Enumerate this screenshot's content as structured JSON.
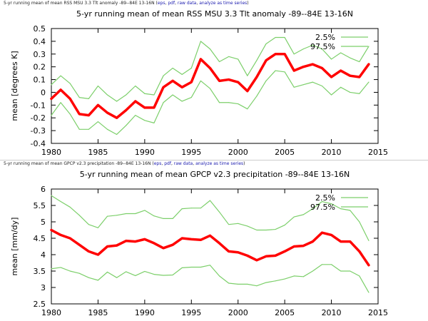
{
  "captions": [
    {
      "prefix": "5-yr running mean of mean RSS MSU 3.3 Tlt anomaly -89--84E 13-16N ",
      "links": [
        "eps",
        "pdf",
        "raw data",
        "analyze as time series"
      ]
    },
    {
      "prefix": "5-yr running mean of mean GPCP v2.3 precipitation -89--84E 13-16N ",
      "links": [
        "eps",
        "pdf",
        "raw data",
        "analyze as time series"
      ]
    }
  ],
  "colors": {
    "mean": "#ff0000",
    "bounds": "#7ccf6a",
    "axis": "#000000"
  },
  "chart_data": [
    {
      "type": "line",
      "title": "5-yr running mean of mean RSS MSU 3.3 Tlt anomaly -89--84E 13-16N",
      "xlabel": "",
      "ylabel": "mean [degrees K]",
      "xlim": [
        1980,
        2015
      ],
      "ylim": [
        -0.4,
        0.5
      ],
      "xticks": [
        1980,
        1985,
        1990,
        1995,
        2000,
        2005,
        2010,
        2015
      ],
      "yticks": [
        -0.4,
        -0.3,
        -0.2,
        -0.1,
        0,
        0.1,
        0.2,
        0.3,
        0.4,
        0.5
      ],
      "ytick_labels": [
        "-0.4",
        "-0.3",
        "-0.2",
        "-0.1",
        "0",
        "0.1",
        "0.2",
        "0.3",
        "0.4",
        "0.5"
      ],
      "legend_position": "top-right",
      "x": [
        1980,
        1981,
        1982,
        1983,
        1984,
        1985,
        1986,
        1987,
        1988,
        1989,
        1990,
        1991,
        1992,
        1993,
        1994,
        1995,
        1996,
        1997,
        1998,
        1999,
        2000,
        2001,
        2002,
        2003,
        2004,
        2005,
        2006,
        2007,
        2008,
        2009,
        2010,
        2011,
        2012,
        2013,
        2014
      ],
      "series": [
        {
          "name": "",
          "role": "mean",
          "values": [
            -0.05,
            0.02,
            -0.05,
            -0.17,
            -0.18,
            -0.1,
            -0.16,
            -0.2,
            -0.14,
            -0.07,
            -0.12,
            -0.12,
            0.04,
            0.09,
            0.04,
            0.08,
            0.26,
            0.19,
            0.09,
            0.1,
            0.08,
            0.01,
            0.12,
            0.25,
            0.3,
            0.3,
            0.17,
            0.2,
            0.22,
            0.19,
            0.12,
            0.17,
            0.13,
            0.12,
            0.22
          ]
        },
        {
          "name": "2.5%",
          "role": "lower",
          "values": [
            -0.18,
            -0.08,
            -0.17,
            -0.29,
            -0.29,
            -0.23,
            -0.29,
            -0.33,
            -0.26,
            -0.18,
            -0.22,
            -0.24,
            -0.08,
            -0.02,
            -0.07,
            -0.04,
            0.09,
            0.03,
            -0.08,
            -0.08,
            -0.09,
            -0.13,
            -0.03,
            0.09,
            0.17,
            0.16,
            0.04,
            0.06,
            0.08,
            0.05,
            -0.02,
            0.04,
            0.0,
            -0.01,
            0.08
          ]
        },
        {
          "name": "97.5%",
          "role": "upper",
          "values": [
            0.06,
            0.13,
            0.07,
            -0.04,
            -0.05,
            0.05,
            -0.02,
            -0.07,
            -0.02,
            0.05,
            -0.01,
            -0.02,
            0.13,
            0.19,
            0.14,
            0.19,
            0.4,
            0.34,
            0.24,
            0.28,
            0.26,
            0.13,
            0.25,
            0.38,
            0.43,
            0.43,
            0.3,
            0.34,
            0.37,
            0.34,
            0.26,
            0.31,
            0.27,
            0.24,
            0.36
          ]
        }
      ]
    },
    {
      "type": "line",
      "title": "5-yr running mean of mean GPCP v2.3 precipitation -89--84E 13-16N",
      "xlabel": "",
      "ylabel": "mean [mm/dy]",
      "xlim": [
        1980,
        2015
      ],
      "ylim": [
        2.5,
        6
      ],
      "xticks": [
        1980,
        1985,
        1990,
        1995,
        2000,
        2005,
        2010,
        2015
      ],
      "yticks": [
        2.5,
        3,
        3.5,
        4,
        4.5,
        5,
        5.5,
        6
      ],
      "ytick_labels": [
        "2.5",
        "3",
        "3.5",
        "4",
        "4.5",
        "5",
        "5.5",
        "6"
      ],
      "legend_position": "top-right",
      "x": [
        1980,
        1981,
        1982,
        1983,
        1984,
        1985,
        1986,
        1987,
        1988,
        1989,
        1990,
        1991,
        1992,
        1993,
        1994,
        1995,
        1996,
        1997,
        1998,
        1999,
        2000,
        2001,
        2002,
        2003,
        2004,
        2005,
        2006,
        2007,
        2008,
        2009,
        2010,
        2011,
        2012,
        2013,
        2014
      ],
      "series": [
        {
          "name": "",
          "role": "mean",
          "values": [
            4.75,
            4.6,
            4.5,
            4.3,
            4.1,
            4.0,
            4.25,
            4.28,
            4.42,
            4.4,
            4.47,
            4.35,
            4.2,
            4.3,
            4.5,
            4.47,
            4.45,
            4.58,
            4.35,
            4.1,
            4.07,
            3.97,
            3.83,
            3.95,
            3.97,
            4.1,
            4.25,
            4.27,
            4.4,
            4.67,
            4.6,
            4.4,
            4.4,
            4.1,
            3.68
          ]
        },
        {
          "name": "2.5%",
          "role": "lower",
          "values": [
            3.57,
            3.61,
            3.5,
            3.43,
            3.3,
            3.22,
            3.47,
            3.3,
            3.48,
            3.36,
            3.49,
            3.4,
            3.37,
            3.38,
            3.6,
            3.62,
            3.62,
            3.68,
            3.35,
            3.13,
            3.1,
            3.1,
            3.05,
            3.15,
            3.2,
            3.26,
            3.35,
            3.33,
            3.5,
            3.7,
            3.7,
            3.5,
            3.5,
            3.35,
            2.85
          ]
        },
        {
          "name": "97.5%",
          "role": "upper",
          "values": [
            5.8,
            5.62,
            5.45,
            5.2,
            4.92,
            4.82,
            5.17,
            5.2,
            5.25,
            5.25,
            5.35,
            5.18,
            5.1,
            5.1,
            5.4,
            5.42,
            5.42,
            5.65,
            5.3,
            4.92,
            4.95,
            4.87,
            4.75,
            4.75,
            4.77,
            4.9,
            5.15,
            5.22,
            5.4,
            5.62,
            5.55,
            5.4,
            5.35,
            5.0,
            4.43
          ]
        }
      ]
    }
  ]
}
